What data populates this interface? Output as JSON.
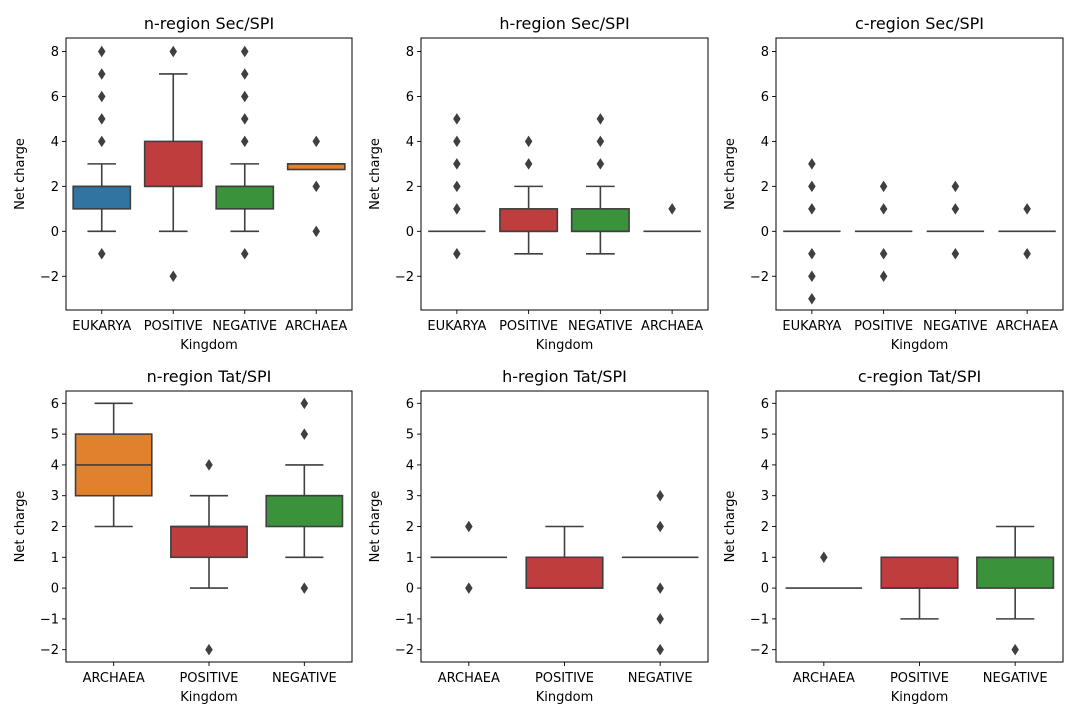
{
  "colors": {
    "EUKARYA": "#3274a1",
    "POSITIVE": "#c03d3e",
    "NEGATIVE": "#3a923a",
    "ARCHAEA": "#e1812c",
    "edge": "#3f3f3f",
    "frame": "#000000"
  },
  "chart_data": [
    {
      "type": "box",
      "title": "n-region Sec/SPI",
      "xlabel": "Kingdom",
      "ylabel": "Net charge",
      "ylim": [
        -3.5,
        8.6
      ],
      "yticks": [
        -2,
        0,
        2,
        4,
        6,
        8
      ],
      "ytick_labels": [
        "−2",
        "0",
        "2",
        "4",
        "6",
        "8"
      ],
      "categories": [
        "EUKARYA",
        "POSITIVE",
        "NEGATIVE",
        "ARCHAEA"
      ],
      "boxes": [
        {
          "q1": 1,
          "median": 2,
          "q3": 2,
          "whisker_low": 0,
          "whisker_high": 3,
          "outliers": [
            -1,
            4,
            5,
            6,
            7,
            8
          ]
        },
        {
          "q1": 2,
          "median": 2,
          "q3": 4,
          "whisker_low": 0,
          "whisker_high": 7,
          "outliers": [
            -2,
            8
          ]
        },
        {
          "q1": 1,
          "median": 2,
          "q3": 2,
          "whisker_low": 0,
          "whisker_high": 3,
          "outliers": [
            -1,
            4,
            5,
            6,
            7,
            8
          ]
        },
        {
          "q1": 2.75,
          "median": 3,
          "q3": 3,
          "whisker_low": 2.75,
          "whisker_high": 3,
          "outliers": [
            0,
            2,
            4
          ]
        }
      ]
    },
    {
      "type": "box",
      "title": "h-region Sec/SPI",
      "xlabel": "Kingdom",
      "ylabel": "Net charge",
      "ylim": [
        -3.5,
        8.6
      ],
      "yticks": [
        -2,
        0,
        2,
        4,
        6,
        8
      ],
      "ytick_labels": [
        "−2",
        "0",
        "2",
        "4",
        "6",
        "8"
      ],
      "categories": [
        "EUKARYA",
        "POSITIVE",
        "NEGATIVE",
        "ARCHAEA"
      ],
      "boxes": [
        {
          "q1": 0,
          "median": 0,
          "q3": 0,
          "whisker_low": 0,
          "whisker_high": 0,
          "outliers": [
            -1,
            1,
            2,
            3,
            4,
            5
          ]
        },
        {
          "q1": 0,
          "median": 0,
          "q3": 1,
          "whisker_low": -1,
          "whisker_high": 2,
          "outliers": [
            3,
            4
          ]
        },
        {
          "q1": 0,
          "median": 0,
          "q3": 1,
          "whisker_low": -1,
          "whisker_high": 2,
          "outliers": [
            3,
            4,
            5
          ]
        },
        {
          "q1": 0,
          "median": 0,
          "q3": 0,
          "whisker_low": 0,
          "whisker_high": 0,
          "outliers": [
            1
          ]
        }
      ]
    },
    {
      "type": "box",
      "title": "c-region Sec/SPI",
      "xlabel": "Kingdom",
      "ylabel": "Net charge",
      "ylim": [
        -3.5,
        8.6
      ],
      "yticks": [
        -2,
        0,
        2,
        4,
        6,
        8
      ],
      "ytick_labels": [
        "−2",
        "0",
        "2",
        "4",
        "6",
        "8"
      ],
      "categories": [
        "EUKARYA",
        "POSITIVE",
        "NEGATIVE",
        "ARCHAEA"
      ],
      "boxes": [
        {
          "q1": 0,
          "median": 0,
          "q3": 0,
          "whisker_low": 0,
          "whisker_high": 0,
          "outliers": [
            -3,
            -2,
            -1,
            1,
            2,
            3
          ]
        },
        {
          "q1": 0,
          "median": 0,
          "q3": 0,
          "whisker_low": 0,
          "whisker_high": 0,
          "outliers": [
            -2,
            -1,
            1,
            2
          ]
        },
        {
          "q1": 0,
          "median": 0,
          "q3": 0,
          "whisker_low": 0,
          "whisker_high": 0,
          "outliers": [
            -1,
            1,
            2
          ]
        },
        {
          "q1": 0,
          "median": 0,
          "q3": 0,
          "whisker_low": 0,
          "whisker_high": 0,
          "outliers": [
            -1,
            1
          ]
        }
      ]
    },
    {
      "type": "box",
      "title": "n-region Tat/SPI",
      "xlabel": "Kingdom",
      "ylabel": "Net charge",
      "ylim": [
        -2.4,
        6.4
      ],
      "yticks": [
        -2,
        -1,
        0,
        1,
        2,
        3,
        4,
        5,
        6
      ],
      "ytick_labels": [
        "−2",
        "−1",
        "0",
        "1",
        "2",
        "3",
        "4",
        "5",
        "6"
      ],
      "categories": [
        "ARCHAEA",
        "POSITIVE",
        "NEGATIVE"
      ],
      "boxes": [
        {
          "q1": 3,
          "median": 4,
          "q3": 5,
          "whisker_low": 2,
          "whisker_high": 6,
          "outliers": []
        },
        {
          "q1": 1,
          "median": 2,
          "q3": 2,
          "whisker_low": 0,
          "whisker_high": 3,
          "outliers": [
            -2,
            4
          ]
        },
        {
          "q1": 2,
          "median": 3,
          "q3": 3,
          "whisker_low": 1,
          "whisker_high": 4,
          "outliers": [
            0,
            5,
            6
          ]
        }
      ]
    },
    {
      "type": "box",
      "title": "h-region Tat/SPI",
      "xlabel": "Kingdom",
      "ylabel": "Net charge",
      "ylim": [
        -2.4,
        6.4
      ],
      "yticks": [
        -2,
        -1,
        0,
        1,
        2,
        3,
        4,
        5,
        6
      ],
      "ytick_labels": [
        "−2",
        "−1",
        "0",
        "1",
        "2",
        "3",
        "4",
        "5",
        "6"
      ],
      "categories": [
        "ARCHAEA",
        "POSITIVE",
        "NEGATIVE"
      ],
      "boxes": [
        {
          "q1": 1,
          "median": 1,
          "q3": 1,
          "whisker_low": 1,
          "whisker_high": 1,
          "outliers": [
            0,
            2
          ]
        },
        {
          "q1": 0,
          "median": 0,
          "q3": 1,
          "whisker_low": 0,
          "whisker_high": 2,
          "outliers": []
        },
        {
          "q1": 1,
          "median": 1,
          "q3": 1,
          "whisker_low": 1,
          "whisker_high": 1,
          "outliers": [
            -2,
            -1,
            0,
            2,
            3
          ]
        }
      ]
    },
    {
      "type": "box",
      "title": "c-region Tat/SPI",
      "xlabel": "Kingdom",
      "ylabel": "Net charge",
      "ylim": [
        -2.4,
        6.4
      ],
      "yticks": [
        -2,
        -1,
        0,
        1,
        2,
        3,
        4,
        5,
        6
      ],
      "ytick_labels": [
        "−2",
        "−1",
        "0",
        "1",
        "2",
        "3",
        "4",
        "5",
        "6"
      ],
      "categories": [
        "ARCHAEA",
        "POSITIVE",
        "NEGATIVE"
      ],
      "boxes": [
        {
          "q1": 0,
          "median": 0,
          "q3": 0,
          "whisker_low": 0,
          "whisker_high": 0,
          "outliers": [
            1
          ]
        },
        {
          "q1": 0,
          "median": 0,
          "q3": 1,
          "whisker_low": -1,
          "whisker_high": 1,
          "outliers": []
        },
        {
          "q1": 0,
          "median": 1,
          "q3": 1,
          "whisker_low": -1,
          "whisker_high": 2,
          "outliers": [
            -2
          ]
        }
      ]
    }
  ]
}
